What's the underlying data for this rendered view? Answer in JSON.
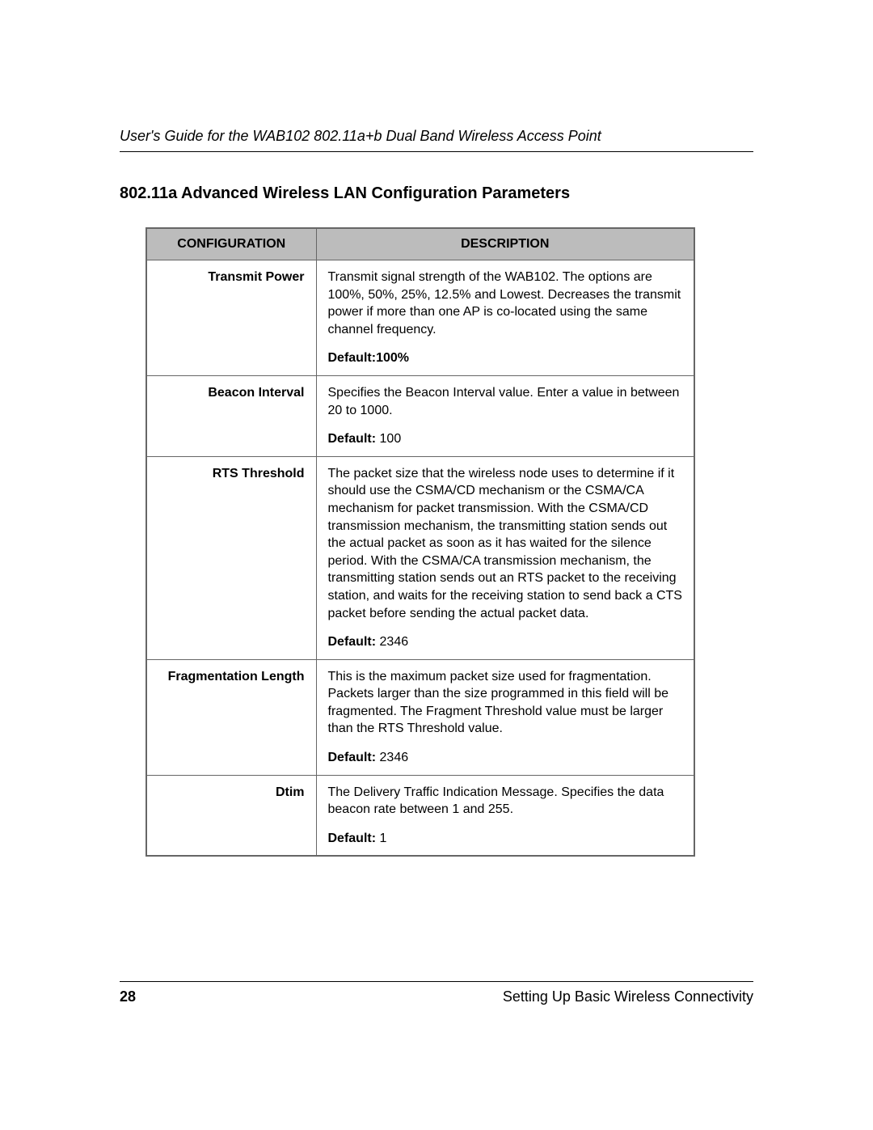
{
  "colors": {
    "tableHeaderBg": "#bcbcbc",
    "tableBorder": "#666666",
    "ruleLine": "#000000",
    "text": "#000000",
    "background": "#ffffff"
  },
  "typography": {
    "headerItalicSize": 18,
    "sectionHeadingSize": 20,
    "tableHeaderSize": 16,
    "tableBodySize": 16,
    "footerSize": 18
  },
  "header": {
    "runningTitle": "User's Guide for the WAB102 802.11a+b Dual Band Wireless Access Point"
  },
  "section": {
    "heading": "802.11a Advanced Wireless LAN Configuration Parameters"
  },
  "table": {
    "columns": [
      "CONFIGURATION",
      "DESCRIPTION"
    ],
    "rows": [
      {
        "config": "Transmit Power",
        "description": "Transmit signal strength of the WAB102. The options are 100%, 50%, 25%, 12.5% and Lowest. Decreases the transmit power if more than one AP is co-located using the same channel frequency.",
        "defaultLabel": "Default:",
        "defaultValue": "100%",
        "defaultJoined": true
      },
      {
        "config": "Beacon Interval",
        "description": "Specifies the Beacon Interval value. Enter a value in between 20 to 1000.",
        "defaultLabel": "Default:",
        "defaultValue": "100",
        "defaultJoined": false
      },
      {
        "config": "RTS Threshold",
        "description": "The packet size that the wireless node uses to determine if it should use the CSMA/CD mechanism or the CSMA/CA mechanism for packet transmission. With the CSMA/CD transmission mechanism, the transmitting station sends out the actual packet as soon as it has waited for the silence period. With the CSMA/CA transmission mechanism, the transmitting station sends out an RTS packet to the receiving station, and waits for the receiving station to send back a CTS packet before sending the actual packet data.",
        "defaultLabel": "Default:",
        "defaultValue": "2346",
        "defaultJoined": false
      },
      {
        "config": "Fragmentation Length",
        "description": "This is the maximum packet size used for fragmentation. Packets larger than the size programmed in this field will be fragmented. The Fragment Threshold value must be larger than the RTS Threshold value.",
        "defaultLabel": "Default:",
        "defaultValue": "2346",
        "defaultJoined": false
      },
      {
        "config": "Dtim",
        "description": "The Delivery Traffic Indication Message. Specifies the data beacon rate between 1 and 255.",
        "defaultLabel": "Default:",
        "defaultValue": "1",
        "defaultJoined": false
      }
    ]
  },
  "footer": {
    "pageNumber": "28",
    "sectionName": "Setting Up Basic Wireless Connectivity"
  }
}
